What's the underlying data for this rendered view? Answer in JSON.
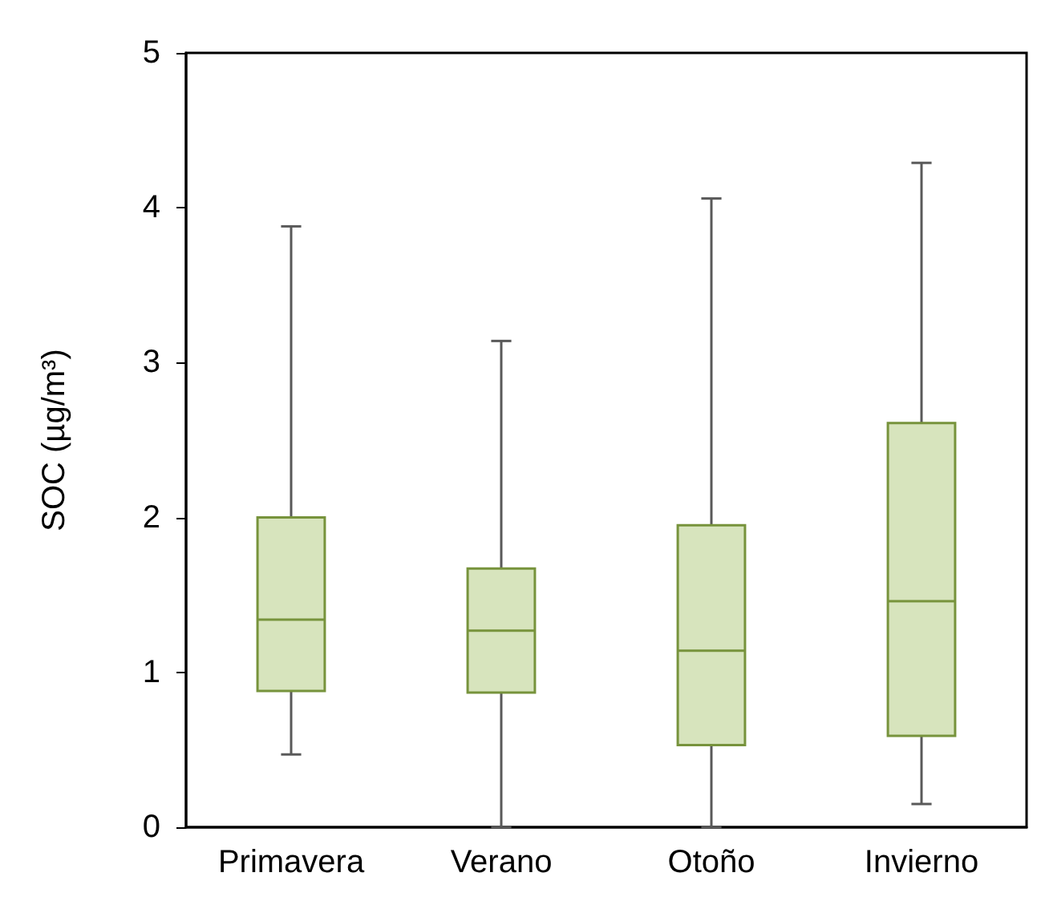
{
  "chart_data": {
    "type": "box",
    "ylabel": "SOC (µg/m³)",
    "categories": [
      "Primavera",
      "Verano",
      "Otoño",
      "Invierno"
    ],
    "boxes": [
      {
        "low": 0.47,
        "q1": 0.88,
        "median": 1.34,
        "q3": 2.0,
        "high": 3.88
      },
      {
        "low": 0,
        "q1": 0.87,
        "median": 1.27,
        "q3": 1.67,
        "high": 3.14
      },
      {
        "low": 0,
        "q1": 0.53,
        "median": 1.14,
        "q3": 1.95,
        "high": 4.06
      },
      {
        "low": 0.15,
        "q1": 0.59,
        "median": 1.46,
        "q3": 2.61,
        "high": 4.29
      }
    ],
    "color": "#d7e4bd",
    "ylim": [
      0,
      5
    ],
    "yticks": [
      0,
      1,
      2,
      3,
      4,
      5
    ],
    "grid": false
  }
}
